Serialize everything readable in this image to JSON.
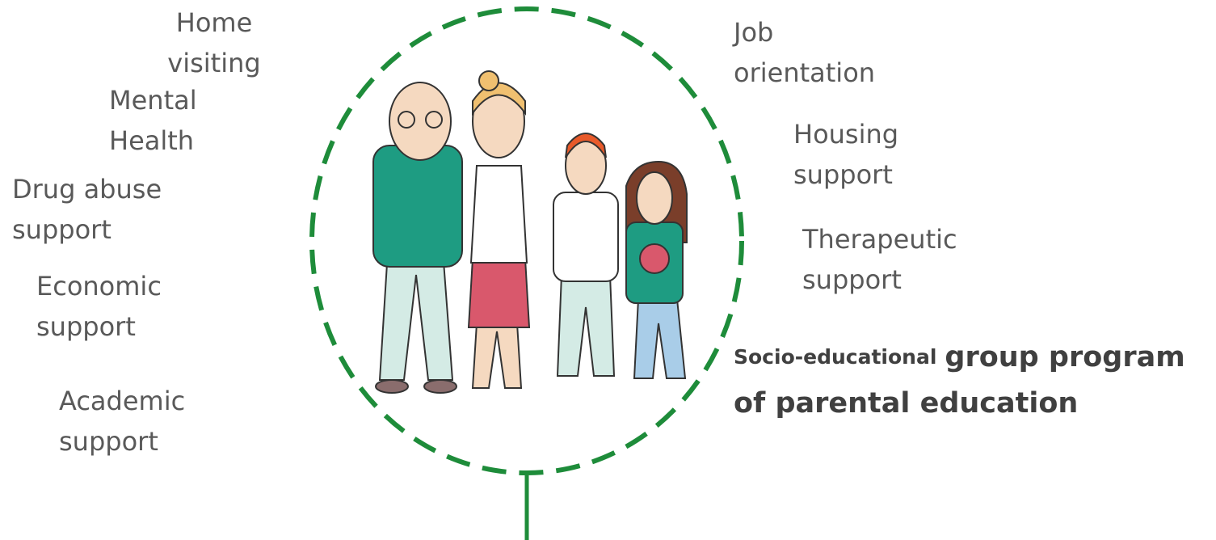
{
  "labels": [
    {
      "lines": [
        "Home",
        "visiting"
      ]
    },
    {
      "lines": [
        "Mental",
        "Health"
      ]
    },
    {
      "lines": [
        "Drug abuse",
        "support"
      ]
    },
    {
      "lines": [
        "Economic",
        "support"
      ]
    },
    {
      "lines": [
        "Academic",
        "support"
      ]
    },
    {
      "lines": [
        "Job",
        "orientation"
      ]
    },
    {
      "lines": [
        "Housing",
        "support"
      ]
    },
    {
      "lines": [
        "Therapeutic",
        "support"
      ]
    }
  ],
  "highlight": {
    "prefix": "Socio-educational",
    "main": "group program",
    "second_line": "of parental education"
  }
}
